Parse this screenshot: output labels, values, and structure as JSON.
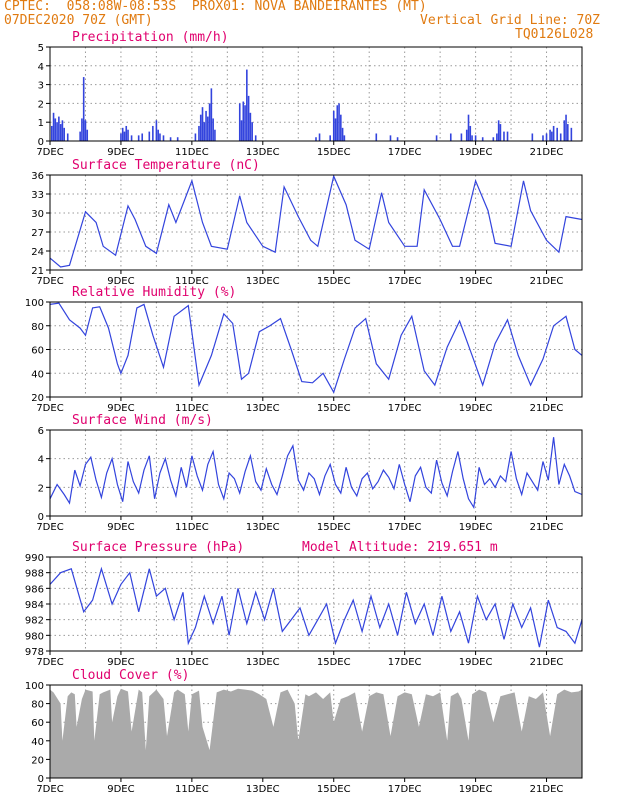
{
  "header": {
    "line1": "CPTEC:  058:08W-08:53S  PROX01: NOVA BANDEIRANTES (MT)",
    "date": "07DEC2020 70Z (GMT)",
    "grid_line": "Vertical Grid Line: 70Z",
    "code": "TQ0126L028",
    "model_altitude": "Model Altitude: 219.651 m"
  },
  "x_axis": {
    "tick_labels": [
      "7DEC",
      "9DEC",
      "11DEC",
      "13DEC",
      "15DEC",
      "17DEC",
      "19DEC",
      "21DEC"
    ],
    "range_days": [
      7,
      22
    ]
  },
  "colors": {
    "line": "#3344dd",
    "cloud": "#aaaaaa",
    "title": "#e0006e",
    "header": "#e07a10"
  },
  "chart_data": [
    {
      "type": "bar",
      "title": "Precipitation (mm/h)",
      "ylim": [
        0,
        5
      ],
      "yticks": [
        "0",
        "1",
        "2",
        "3",
        "4",
        "5"
      ],
      "x": [
        7.05,
        7.1,
        7.15,
        7.2,
        7.25,
        7.3,
        7.35,
        7.4,
        7.5,
        7.85,
        7.9,
        7.95,
        8.0,
        8.05,
        9.0,
        9.05,
        9.1,
        9.15,
        9.2,
        9.3,
        9.5,
        9.6,
        9.8,
        9.9,
        10.0,
        10.05,
        10.1,
        10.2,
        10.4,
        10.6,
        11.1,
        11.2,
        11.25,
        11.3,
        11.35,
        11.4,
        11.45,
        11.5,
        11.55,
        11.6,
        11.65,
        12.35,
        12.4,
        12.45,
        12.5,
        12.55,
        12.6,
        12.65,
        12.7,
        12.8,
        14.5,
        14.6,
        14.9,
        15.0,
        15.05,
        15.1,
        15.15,
        15.2,
        15.25,
        15.3,
        16.2,
        16.6,
        16.8,
        17.9,
        18.3,
        18.6,
        18.75,
        18.8,
        18.85,
        18.9,
        19.0,
        19.2,
        19.5,
        19.6,
        19.65,
        19.7,
        19.8,
        19.9,
        20.6,
        20.9,
        21.0,
        21.1,
        21.15,
        21.2,
        21.3,
        21.4,
        21.5,
        21.55,
        21.6,
        21.7
      ],
      "values": [
        0.8,
        1.5,
        1.2,
        1.0,
        1.3,
        0.9,
        1.1,
        0.7,
        0.4,
        0.5,
        1.2,
        3.4,
        1.1,
        0.6,
        0.4,
        0.7,
        0.5,
        0.8,
        0.6,
        0.3,
        0.3,
        0.4,
        0.5,
        0.8,
        1.1,
        0.6,
        0.4,
        0.3,
        0.2,
        0.2,
        0.4,
        0.8,
        1.4,
        1.8,
        1.0,
        1.6,
        1.3,
        2.0,
        2.8,
        1.2,
        0.6,
        2.0,
        1.1,
        2.1,
        1.9,
        3.8,
        2.4,
        1.5,
        1.0,
        0.3,
        0.2,
        0.4,
        0.3,
        1.6,
        1.2,
        1.9,
        2.0,
        1.4,
        0.7,
        0.3,
        0.4,
        0.3,
        0.2,
        0.3,
        0.4,
        0.4,
        0.6,
        1.4,
        0.8,
        0.3,
        0.3,
        0.2,
        0.2,
        0.4,
        1.1,
        0.9,
        0.5,
        0.5,
        0.4,
        0.3,
        0.4,
        0.6,
        0.5,
        0.8,
        0.7,
        0.4,
        1.1,
        1.4,
        0.9,
        0.7
      ]
    },
    {
      "type": "line",
      "title": "Surface Temperature (nC)",
      "ylim": [
        20,
        36
      ],
      "yticks": [
        "21",
        "24",
        "27",
        "30",
        "33",
        "36"
      ],
      "x": [
        7.0,
        7.3,
        7.55,
        8.0,
        8.3,
        8.5,
        8.85,
        9.2,
        9.4,
        9.7,
        10.0,
        10.35,
        10.55,
        11.0,
        11.3,
        11.55,
        12.0,
        12.35,
        12.55,
        13.0,
        13.35,
        13.6,
        14.0,
        14.35,
        14.55,
        15.0,
        15.35,
        15.6,
        16.0,
        16.35,
        16.55,
        17.0,
        17.35,
        17.55,
        18.0,
        18.35,
        18.55,
        19.0,
        19.35,
        19.55,
        20.0,
        20.35,
        20.55,
        21.0,
        21.35,
        21.55,
        22.0
      ],
      "values": [
        22.0,
        20.5,
        20.8,
        29.8,
        28.0,
        24.0,
        22.5,
        30.8,
        28.5,
        24.0,
        22.8,
        31.0,
        28.0,
        35.0,
        28.0,
        24.0,
        23.5,
        32.5,
        28.0,
        24.0,
        23.0,
        34.0,
        29.0,
        25.0,
        24.0,
        35.8,
        31.0,
        25.0,
        23.5,
        33.0,
        28.0,
        24.0,
        24.0,
        33.5,
        28.5,
        24.0,
        24.0,
        35.0,
        30.0,
        24.5,
        24.0,
        35.0,
        30.0,
        25.0,
        23.0,
        29.0,
        28.5
      ]
    },
    {
      "type": "line",
      "title": "Relative Humidity (%)",
      "ylim": [
        20,
        100
      ],
      "yticks": [
        "20",
        "40",
        "60",
        "80",
        "100"
      ],
      "x": [
        7.0,
        7.25,
        7.55,
        7.85,
        8.0,
        8.2,
        8.4,
        8.65,
        8.9,
        9.0,
        9.2,
        9.45,
        9.65,
        9.9,
        10.2,
        10.5,
        10.9,
        11.2,
        11.55,
        11.9,
        12.15,
        12.4,
        12.6,
        12.9,
        13.2,
        13.5,
        13.8,
        14.1,
        14.4,
        14.7,
        15.0,
        15.3,
        15.6,
        15.9,
        16.2,
        16.55,
        16.9,
        17.2,
        17.55,
        17.85,
        18.2,
        18.55,
        18.9,
        19.2,
        19.55,
        19.9,
        20.2,
        20.55,
        20.9,
        21.2,
        21.55,
        21.8,
        22.0
      ],
      "values": [
        98.0,
        99.0,
        85.0,
        78.0,
        72.0,
        95.0,
        96.0,
        78.0,
        48.0,
        40.0,
        55.0,
        95.0,
        98.0,
        72.0,
        45.0,
        88.0,
        97.0,
        30.0,
        55.0,
        90.0,
        82.0,
        35.0,
        40.0,
        75.0,
        80.0,
        86.0,
        60.0,
        33.0,
        32.0,
        40.0,
        24.0,
        52.0,
        78.0,
        86.0,
        48.0,
        35.0,
        72.0,
        88.0,
        42.0,
        30.0,
        62.0,
        84.0,
        55.0,
        30.0,
        65.0,
        85.0,
        55.0,
        30.0,
        52.0,
        80.0,
        88.0,
        60.0,
        55.0
      ]
    },
    {
      "type": "line",
      "title": "Surface Wind (m/s)",
      "ylim": [
        0,
        6
      ],
      "yticks": [
        "0",
        "2",
        "4",
        "6"
      ],
      "x": [
        7.0,
        7.2,
        7.4,
        7.55,
        7.7,
        7.85,
        8.0,
        8.15,
        8.3,
        8.45,
        8.6,
        8.75,
        8.9,
        9.05,
        9.2,
        9.35,
        9.5,
        9.65,
        9.8,
        9.95,
        10.1,
        10.25,
        10.4,
        10.55,
        10.7,
        10.85,
        11.0,
        11.15,
        11.3,
        11.45,
        11.6,
        11.75,
        11.9,
        12.05,
        12.2,
        12.35,
        12.5,
        12.65,
        12.8,
        12.95,
        13.1,
        13.25,
        13.4,
        13.55,
        13.7,
        13.85,
        14.0,
        14.15,
        14.3,
        14.45,
        14.6,
        14.75,
        14.9,
        15.05,
        15.2,
        15.35,
        15.5,
        15.65,
        15.8,
        15.95,
        16.1,
        16.25,
        16.4,
        16.55,
        16.7,
        16.85,
        17.0,
        17.15,
        17.3,
        17.45,
        17.6,
        17.75,
        17.9,
        18.05,
        18.2,
        18.35,
        18.5,
        18.65,
        18.8,
        18.95,
        19.1,
        19.25,
        19.4,
        19.55,
        19.7,
        19.85,
        20.0,
        20.15,
        20.3,
        20.45,
        20.6,
        20.75,
        20.9,
        21.05,
        21.2,
        21.35,
        21.5,
        21.65,
        21.8,
        22.0
      ],
      "values": [
        1.2,
        2.2,
        1.5,
        0.9,
        3.2,
        2.1,
        3.6,
        4.1,
        2.5,
        1.3,
        3.0,
        4.0,
        2.2,
        1.0,
        3.8,
        2.4,
        1.6,
        3.2,
        4.2,
        1.2,
        3.0,
        4.0,
        2.5,
        1.4,
        3.4,
        2.0,
        4.2,
        2.8,
        1.8,
        3.6,
        4.5,
        2.2,
        1.2,
        3.0,
        2.6,
        1.6,
        3.1,
        4.2,
        2.4,
        1.8,
        3.3,
        2.2,
        1.5,
        2.8,
        4.2,
        4.9,
        2.5,
        1.8,
        3.0,
        2.6,
        1.5,
        2.8,
        3.6,
        2.2,
        1.6,
        3.4,
        2.0,
        1.4,
        2.6,
        3.0,
        1.9,
        2.4,
        3.2,
        2.7,
        1.9,
        3.6,
        2.2,
        1.0,
        2.8,
        3.4,
        2.0,
        1.6,
        3.9,
        2.3,
        1.4,
        3.1,
        4.5,
        2.6,
        1.2,
        0.6,
        3.4,
        2.2,
        2.6,
        2.0,
        2.8,
        2.4,
        4.5,
        2.6,
        1.5,
        3.0,
        2.4,
        1.8,
        3.8,
        2.5,
        5.5,
        2.2,
        3.6,
        2.8,
        1.7,
        1.5
      ]
    },
    {
      "type": "line",
      "title": "Surface Pressure (hPa)",
      "ylim": [
        978,
        990
      ],
      "yticks": [
        "978",
        "980",
        "982",
        "984",
        "986",
        "988",
        "990"
      ],
      "x": [
        7.0,
        7.3,
        7.6,
        7.95,
        8.2,
        8.45,
        8.75,
        9.0,
        9.25,
        9.5,
        9.8,
        10.0,
        10.25,
        10.5,
        10.75,
        10.9,
        11.1,
        11.35,
        11.6,
        11.85,
        12.05,
        12.3,
        12.55,
        12.8,
        13.05,
        13.3,
        13.55,
        13.8,
        14.05,
        14.3,
        14.55,
        14.8,
        15.05,
        15.3,
        15.55,
        15.8,
        16.05,
        16.3,
        16.55,
        16.8,
        17.05,
        17.3,
        17.55,
        17.8,
        18.05,
        18.3,
        18.55,
        18.8,
        19.05,
        19.3,
        19.55,
        19.8,
        20.05,
        20.3,
        20.55,
        20.8,
        21.05,
        21.3,
        21.55,
        21.8,
        22.0
      ],
      "values": [
        986.5,
        988.0,
        988.5,
        983.0,
        984.5,
        988.5,
        984.0,
        986.5,
        988.0,
        983.0,
        988.5,
        985.0,
        986.0,
        982.0,
        985.5,
        979.0,
        981.0,
        985.0,
        981.5,
        985.0,
        980.0,
        986.0,
        981.5,
        985.5,
        982.0,
        986.0,
        980.5,
        982.0,
        983.5,
        980.0,
        982.0,
        984.0,
        979.0,
        982.0,
        984.5,
        980.5,
        985.0,
        981.0,
        984.0,
        980.0,
        985.5,
        981.5,
        984.0,
        980.0,
        985.0,
        980.5,
        983.0,
        979.0,
        985.0,
        982.0,
        984.0,
        979.5,
        984.0,
        981.0,
        983.5,
        978.5,
        984.5,
        981.0,
        980.5,
        979.0,
        982.0
      ]
    },
    {
      "type": "area",
      "title": "Cloud Cover (%)",
      "ylim": [
        0,
        100
      ],
      "yticks": [
        "0",
        "20",
        "40",
        "60",
        "80",
        "100"
      ],
      "x": [
        7.0,
        7.1,
        7.3,
        7.35,
        7.5,
        7.6,
        7.7,
        7.75,
        7.9,
        8.0,
        8.2,
        8.25,
        8.4,
        8.5,
        8.7,
        8.75,
        8.9,
        9.0,
        9.2,
        9.3,
        9.5,
        9.6,
        9.7,
        9.8,
        10.0,
        10.2,
        10.3,
        10.5,
        10.6,
        10.8,
        10.9,
        11.0,
        11.2,
        11.3,
        11.5,
        11.7,
        11.9,
        12.1,
        12.3,
        12.5,
        12.7,
        12.9,
        13.1,
        13.3,
        13.5,
        13.7,
        13.9,
        14.0,
        14.2,
        14.3,
        14.5,
        14.7,
        14.9,
        15.0,
        15.2,
        15.4,
        15.6,
        15.8,
        16.0,
        16.2,
        16.4,
        16.6,
        16.8,
        17.0,
        17.2,
        17.4,
        17.6,
        17.8,
        18.0,
        18.2,
        18.3,
        18.5,
        18.6,
        18.8,
        18.9,
        19.1,
        19.3,
        19.5,
        19.7,
        19.9,
        20.1,
        20.3,
        20.5,
        20.7,
        20.9,
        21.1,
        21.3,
        21.5,
        21.7,
        21.9,
        22.0
      ],
      "values": [
        95,
        92,
        80,
        40,
        88,
        92,
        90,
        55,
        85,
        95,
        93,
        40,
        90,
        92,
        95,
        60,
        88,
        96,
        93,
        50,
        95,
        92,
        30,
        88,
        95,
        85,
        45,
        92,
        95,
        90,
        50,
        90,
        94,
        55,
        30,
        92,
        95,
        93,
        96,
        95,
        94,
        90,
        85,
        55,
        92,
        95,
        80,
        40,
        90,
        88,
        92,
        85,
        92,
        60,
        85,
        88,
        92,
        50,
        88,
        92,
        90,
        45,
        88,
        92,
        90,
        55,
        90,
        88,
        92,
        40,
        88,
        92,
        85,
        40,
        90,
        95,
        92,
        60,
        88,
        90,
        92,
        50,
        88,
        85,
        92,
        45,
        90,
        95,
        92,
        93,
        95
      ]
    }
  ]
}
